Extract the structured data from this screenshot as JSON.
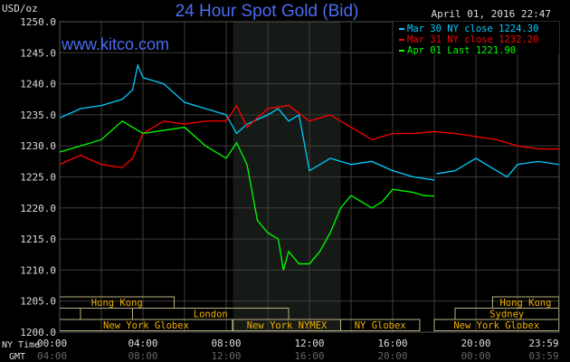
{
  "chart_data": {
    "type": "line",
    "title": "24 Hour Spot Gold (Bid)",
    "unit_label": "USD/oz",
    "timestamp": "April 01, 2016 22:47",
    "watermark": "www.kitco.com",
    "ylim": [
      1200,
      1250
    ],
    "yticks": [
      "1250.0",
      "1245.0",
      "1240.0",
      "1235.0",
      "1230.0",
      "1225.0",
      "1220.0",
      "1215.0",
      "1210.0",
      "1205.0",
      "1200.0"
    ],
    "xlim_hours": [
      0,
      24
    ],
    "x_row1_label": "NY Time",
    "x_row2_label": "GMT",
    "xticks_ny": [
      "00:00",
      "04:00",
      "08:00",
      "12:00",
      "16:00",
      "20:00",
      "23:59"
    ],
    "xticks_gmt": [
      "04:00",
      "08:00",
      "12:00",
      "16:00",
      "20:00",
      "00:00",
      "03:59"
    ],
    "grid": true,
    "legend_position": "top-right",
    "shaded_hours": [
      8.33,
      13.5
    ],
    "series": [
      {
        "name": "Mar 30 NY close",
        "legend_value": "1224.30",
        "color": "#00ccff",
        "x": [
          0,
          1,
          2,
          3,
          3.5,
          3.75,
          4,
          5,
          6,
          7,
          8,
          8.5,
          9,
          10,
          10.5,
          11,
          11.5,
          12,
          13,
          14,
          15,
          16,
          17,
          18
        ],
        "y": [
          1234.5,
          1236,
          1236.5,
          1237.5,
          1239,
          1243,
          1241,
          1240,
          1237,
          1236,
          1235,
          1232,
          1233.5,
          1235,
          1236,
          1234,
          1235,
          1226,
          1228,
          1227,
          1227.5,
          1226,
          1225,
          1224.5
        ],
        "x2": [
          18.1,
          19,
          20,
          21,
          21.5,
          22,
          23,
          23.98
        ],
        "y2": [
          1225.5,
          1226,
          1228,
          1226,
          1225,
          1227,
          1227.5,
          1227
        ]
      },
      {
        "name": "Mar 31 NY close",
        "legend_value": "1232.20",
        "color": "#ff0000",
        "x": [
          0,
          1,
          2,
          3,
          3.5,
          4,
          5,
          6,
          7,
          8,
          8.5,
          9,
          10,
          11,
          12,
          13,
          14,
          15,
          16,
          17,
          18,
          19,
          20,
          21,
          22,
          23,
          23.98
        ],
        "y": [
          1227,
          1228.5,
          1227,
          1226.5,
          1228,
          1232,
          1234,
          1233.5,
          1234,
          1234,
          1236.5,
          1233,
          1236,
          1236.5,
          1234,
          1235,
          1233,
          1231,
          1232,
          1232,
          1232.3,
          1232,
          1231.5,
          1231,
          1230,
          1229.5,
          1229.5
        ]
      },
      {
        "name": "Apr 01 Last",
        "legend_value": "1221.90",
        "color": "#00ff00",
        "x": [
          0,
          1,
          2,
          3,
          4,
          5,
          6,
          7,
          7.5,
          8,
          8.5,
          9,
          9.5,
          10,
          10.5,
          10.75,
          11,
          11.5,
          12,
          12.5,
          13,
          13.5,
          14,
          14.5,
          15,
          15.5,
          16,
          17,
          17.5,
          18
        ],
        "y": [
          1229,
          1230,
          1231,
          1234,
          1232,
          1232.5,
          1233,
          1230,
          1229,
          1228,
          1230.5,
          1227,
          1218,
          1216,
          1215,
          1210,
          1213,
          1211,
          1211,
          1213,
          1216,
          1220,
          1222,
          1221,
          1220,
          1221,
          1223,
          1222.5,
          1222,
          1221.9
        ]
      }
    ],
    "sessions": [
      {
        "label": "Hong Kong",
        "row": 1,
        "start": 0,
        "end": 5.5
      },
      {
        "label": "Hong Kong",
        "row": 1,
        "start": 20.8,
        "end": 23.98
      },
      {
        "label": "",
        "row": 2,
        "start": 0,
        "end": 1
      },
      {
        "label": "",
        "row": 2,
        "start": 1,
        "end": 3.5
      },
      {
        "label": "London",
        "row": 2,
        "start": 3.5,
        "end": 11
      },
      {
        "label": "Sydney",
        "row": 2,
        "start": 19.0,
        "end": 23.98
      },
      {
        "label": "New York Globex",
        "row": 3,
        "start": 0,
        "end": 8.3
      },
      {
        "label": "New York NYMEX",
        "row": 3,
        "start": 8.33,
        "end": 13.5
      },
      {
        "label": "NY Globex",
        "row": 3,
        "start": 13.5,
        "end": 17.3
      },
      {
        "label": "New York Globex",
        "row": 3,
        "start": 18,
        "end": 23.98
      }
    ]
  }
}
